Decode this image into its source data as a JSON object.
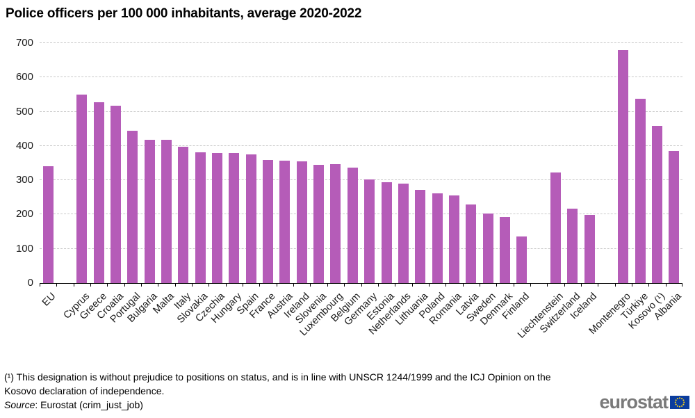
{
  "title": "Police officers per 100 000 inhabitants, average 2020-2022",
  "chart_data": {
    "type": "bar",
    "title": "Police officers per 100 000 inhabitants, average 2020-2022",
    "series_name": "Police officers per 100 000 inhabitants (average 2020-2022)",
    "categories": [
      "EU",
      "Cyprus",
      "Greece",
      "Croatia",
      "Portugal",
      "Bulgaria",
      "Malta",
      "Italy",
      "Slovakia",
      "Czechia",
      "Hungary",
      "Spain",
      "France",
      "Austria",
      "Ireland",
      "Slovenia",
      "Luxembourg",
      "Belgium",
      "Germany",
      "Estonia",
      "Netherlands",
      "Lithuania",
      "Poland",
      "Romania",
      "Latvia",
      "Sweden",
      "Denmark",
      "Finland",
      "Liechtenstein",
      "Switzerland",
      "Iceland",
      "Montenegro",
      "Türkiye",
      "Kosovo (¹)",
      "Albania"
    ],
    "values": [
      340,
      549,
      527,
      517,
      444,
      419,
      418,
      397,
      381,
      379,
      379,
      375,
      359,
      357,
      355,
      345,
      346,
      336,
      302,
      294,
      290,
      272,
      262,
      255,
      229,
      203,
      192,
      135,
      322,
      218,
      199,
      680,
      537,
      459,
      385
    ],
    "xlabel": "",
    "ylabel": "",
    "ylim": [
      0,
      700
    ],
    "yticks": [
      0,
      100,
      200,
      300,
      400,
      500,
      600,
      700
    ],
    "grid": "horizontal-dashed",
    "legend": false,
    "bar_color": "#b55cb8",
    "gaps_after_indices": [
      0,
      27,
      30
    ]
  },
  "footnote": "(¹) This designation is without prejudice to positions on status, and is in line with UNSCR 1244/1999 and the ICJ Opinion on the Kosovo declaration of independence.",
  "source": {
    "label": "Source",
    "rest": ": Eurostat (crim_just_job)"
  },
  "logo": {
    "text": "eurostat"
  }
}
